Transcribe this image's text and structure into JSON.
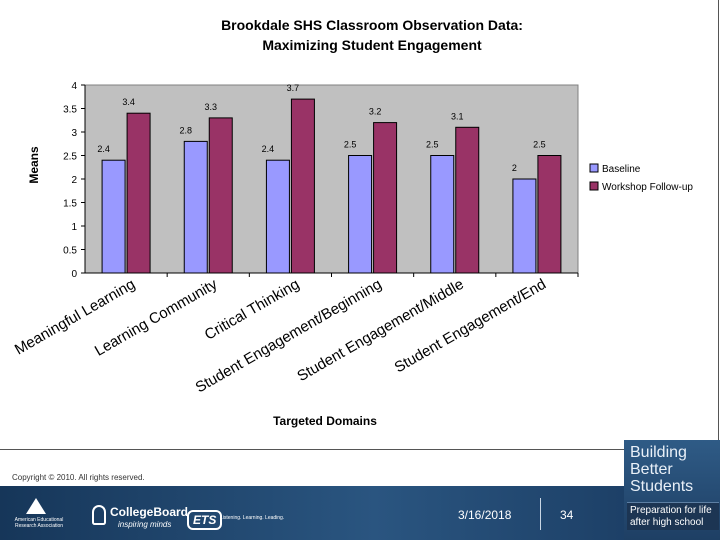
{
  "chart_data": {
    "type": "bar",
    "title_lines": [
      "Brookdale SHS Classroom Observation Data:",
      "Maximizing Student Engagement"
    ],
    "xlabel": "Targeted Domains",
    "ylabel": "Means",
    "ylim": [
      0,
      4
    ],
    "yticks": [
      "0",
      "0.5",
      "1",
      "1.5",
      "2",
      "2.5",
      "3",
      "3.5",
      "4"
    ],
    "grid": false,
    "legend_position": "right",
    "categories": [
      "Meaningful Learning",
      "Learning Community",
      "Critical Thinking",
      "Student Engagement/Beginning",
      "Student Engagement/Middle",
      "Student Engagement/End"
    ],
    "series": [
      {
        "name": "Baseline",
        "color": "#9999ff",
        "values": [
          2.4,
          2.8,
          2.4,
          2.5,
          2.5,
          2.0
        ],
        "labels": [
          "2.4",
          "2.8",
          "2.4",
          "2.5",
          "2.5",
          "2"
        ]
      },
      {
        "name": "Workshop Follow-up",
        "color": "#993366",
        "values": [
          3.4,
          3.3,
          3.7,
          3.2,
          3.1,
          2.5
        ],
        "labels": [
          "3.4",
          "3.3",
          "3.7",
          "3.2",
          "3.1",
          "2.5"
        ]
      }
    ],
    "plot_background": "#c0c0c0"
  },
  "footer": {
    "copyright": "Copyright © 2010. All rights reserved.",
    "date": "3/16/2018",
    "page": "34",
    "aera": "American Educational\nResearch Association",
    "collegeboard_name": "CollegeBoard",
    "collegeboard_tag": "inspiring minds",
    "ets": "ETS",
    "ets_tag": "Listening. Learning. Leading.",
    "brand_title": "Building\nBetter\nStudents",
    "brand_subtitle": "Preparation for life\nafter high school"
  }
}
